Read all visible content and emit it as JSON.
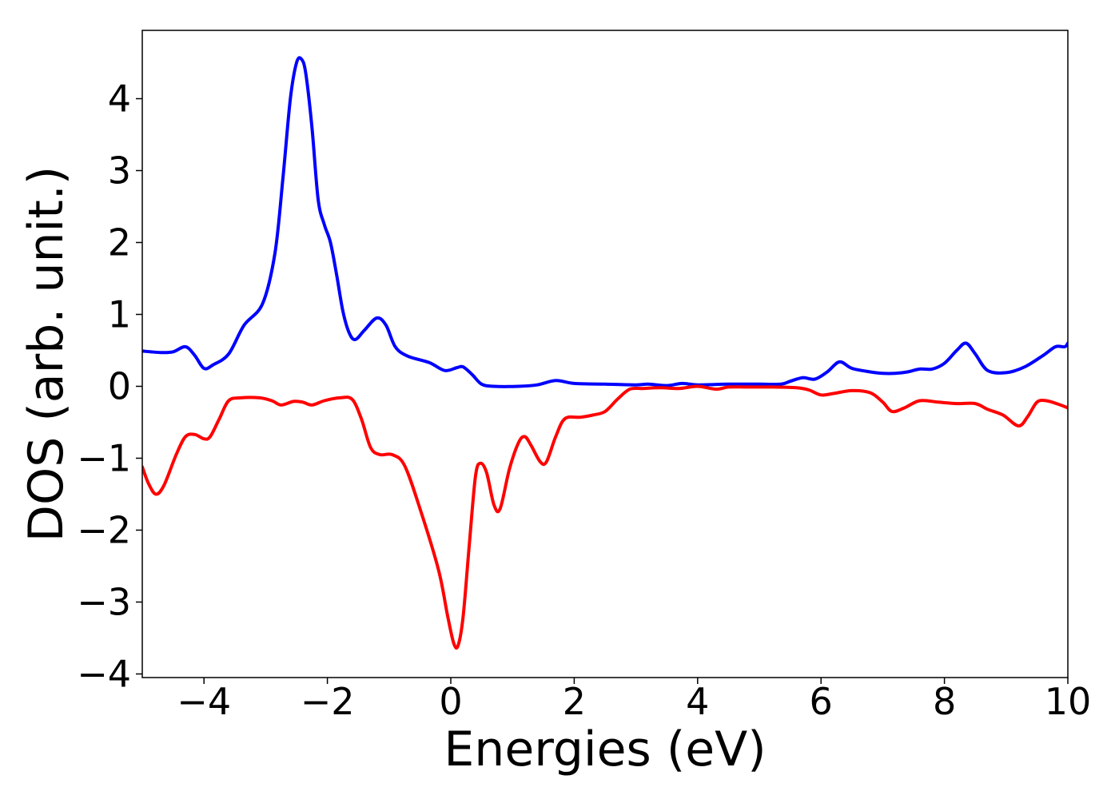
{
  "chart_data": {
    "type": "line",
    "title": "",
    "xlabel": "Energies (eV)",
    "ylabel": "DOS (arb. unit.)",
    "xlim": [
      -5,
      10
    ],
    "ylim": [
      -4.05,
      4.95
    ],
    "grid": false,
    "legend": "none",
    "x_ticks": [
      -4,
      -2,
      0,
      2,
      4,
      6,
      8,
      10
    ],
    "x_tick_labels": [
      "−4",
      "−2",
      "0",
      "2",
      "4",
      "6",
      "8",
      "10"
    ],
    "y_ticks": [
      -4,
      -3,
      -2,
      -1,
      0,
      1,
      2,
      3,
      4
    ],
    "y_tick_labels": [
      "−4",
      "−3",
      "−2",
      "−1",
      "0",
      "1",
      "2",
      "3",
      "4"
    ],
    "series": [
      {
        "color": "#0000ff",
        "points": [
          [
            -5.0,
            0.49
          ],
          [
            -4.7,
            0.47
          ],
          [
            -4.5,
            0.48
          ],
          [
            -4.3,
            0.55
          ],
          [
            -4.15,
            0.43
          ],
          [
            -4.0,
            0.25
          ],
          [
            -3.85,
            0.3
          ],
          [
            -3.6,
            0.45
          ],
          [
            -3.35,
            0.85
          ],
          [
            -3.05,
            1.15
          ],
          [
            -2.85,
            1.85
          ],
          [
            -2.72,
            2.9
          ],
          [
            -2.6,
            4.0
          ],
          [
            -2.5,
            4.5
          ],
          [
            -2.42,
            4.55
          ],
          [
            -2.35,
            4.35
          ],
          [
            -2.25,
            3.6
          ],
          [
            -2.15,
            2.6
          ],
          [
            -2.05,
            2.25
          ],
          [
            -1.95,
            2.0
          ],
          [
            -1.85,
            1.55
          ],
          [
            -1.75,
            1.05
          ],
          [
            -1.65,
            0.75
          ],
          [
            -1.55,
            0.65
          ],
          [
            -1.4,
            0.78
          ],
          [
            -1.2,
            0.95
          ],
          [
            -1.05,
            0.85
          ],
          [
            -0.9,
            0.55
          ],
          [
            -0.7,
            0.42
          ],
          [
            -0.35,
            0.33
          ],
          [
            -0.1,
            0.22
          ],
          [
            0.1,
            0.26
          ],
          [
            0.2,
            0.27
          ],
          [
            0.35,
            0.16
          ],
          [
            0.5,
            0.03
          ],
          [
            0.7,
            0.0
          ],
          [
            1.1,
            0.0
          ],
          [
            1.4,
            0.02
          ],
          [
            1.7,
            0.08
          ],
          [
            2.0,
            0.04
          ],
          [
            2.5,
            0.03
          ],
          [
            3.0,
            0.02
          ],
          [
            3.2,
            0.03
          ],
          [
            3.5,
            0.01
          ],
          [
            3.75,
            0.04
          ],
          [
            4.0,
            0.02
          ],
          [
            4.5,
            0.03
          ],
          [
            5.0,
            0.03
          ],
          [
            5.35,
            0.03
          ],
          [
            5.5,
            0.07
          ],
          [
            5.7,
            0.12
          ],
          [
            5.9,
            0.1
          ],
          [
            6.1,
            0.2
          ],
          [
            6.3,
            0.34
          ],
          [
            6.5,
            0.25
          ],
          [
            6.8,
            0.2
          ],
          [
            7.0,
            0.18
          ],
          [
            7.2,
            0.18
          ],
          [
            7.4,
            0.2
          ],
          [
            7.6,
            0.24
          ],
          [
            7.8,
            0.24
          ],
          [
            8.0,
            0.32
          ],
          [
            8.2,
            0.5
          ],
          [
            8.35,
            0.6
          ],
          [
            8.5,
            0.45
          ],
          [
            8.7,
            0.22
          ],
          [
            9.0,
            0.19
          ],
          [
            9.3,
            0.27
          ],
          [
            9.6,
            0.43
          ],
          [
            9.8,
            0.55
          ],
          [
            9.95,
            0.55
          ],
          [
            10.0,
            0.6
          ]
        ]
      },
      {
        "color": "#ff0000",
        "points": [
          [
            -5.0,
            -1.12
          ],
          [
            -4.9,
            -1.35
          ],
          [
            -4.78,
            -1.5
          ],
          [
            -4.65,
            -1.38
          ],
          [
            -4.45,
            -0.95
          ],
          [
            -4.3,
            -0.7
          ],
          [
            -4.15,
            -0.67
          ],
          [
            -4.0,
            -0.73
          ],
          [
            -3.9,
            -0.7
          ],
          [
            -3.75,
            -0.45
          ],
          [
            -3.6,
            -0.2
          ],
          [
            -3.4,
            -0.16
          ],
          [
            -3.1,
            -0.16
          ],
          [
            -2.9,
            -0.2
          ],
          [
            -2.75,
            -0.26
          ],
          [
            -2.55,
            -0.21
          ],
          [
            -2.4,
            -0.22
          ],
          [
            -2.25,
            -0.26
          ],
          [
            -2.05,
            -0.2
          ],
          [
            -1.8,
            -0.16
          ],
          [
            -1.6,
            -0.18
          ],
          [
            -1.45,
            -0.45
          ],
          [
            -1.3,
            -0.85
          ],
          [
            -1.15,
            -0.95
          ],
          [
            -0.95,
            -0.95
          ],
          [
            -0.75,
            -1.1
          ],
          [
            -0.5,
            -1.7
          ],
          [
            -0.2,
            -2.55
          ],
          [
            -0.05,
            -3.2
          ],
          [
            0.05,
            -3.58
          ],
          [
            0.12,
            -3.6
          ],
          [
            0.2,
            -3.2
          ],
          [
            0.3,
            -2.2
          ],
          [
            0.4,
            -1.25
          ],
          [
            0.48,
            -1.07
          ],
          [
            0.58,
            -1.2
          ],
          [
            0.7,
            -1.65
          ],
          [
            0.8,
            -1.7
          ],
          [
            0.95,
            -1.15
          ],
          [
            1.1,
            -0.78
          ],
          [
            1.2,
            -0.7
          ],
          [
            1.3,
            -0.82
          ],
          [
            1.45,
            -1.05
          ],
          [
            1.55,
            -1.05
          ],
          [
            1.7,
            -0.7
          ],
          [
            1.85,
            -0.45
          ],
          [
            2.1,
            -0.43
          ],
          [
            2.3,
            -0.4
          ],
          [
            2.5,
            -0.35
          ],
          [
            2.7,
            -0.18
          ],
          [
            2.9,
            -0.04
          ],
          [
            3.1,
            -0.03
          ],
          [
            3.4,
            -0.02
          ],
          [
            3.7,
            -0.03
          ],
          [
            4.0,
            0.0
          ],
          [
            4.3,
            -0.04
          ],
          [
            4.5,
            -0.01
          ],
          [
            4.8,
            -0.01
          ],
          [
            5.2,
            -0.01
          ],
          [
            5.6,
            -0.02
          ],
          [
            5.8,
            -0.05
          ],
          [
            6.0,
            -0.12
          ],
          [
            6.2,
            -0.1
          ],
          [
            6.5,
            -0.06
          ],
          [
            6.8,
            -0.09
          ],
          [
            7.0,
            -0.22
          ],
          [
            7.15,
            -0.35
          ],
          [
            7.35,
            -0.3
          ],
          [
            7.6,
            -0.2
          ],
          [
            7.9,
            -0.22
          ],
          [
            8.2,
            -0.24
          ],
          [
            8.5,
            -0.24
          ],
          [
            8.7,
            -0.32
          ],
          [
            8.95,
            -0.4
          ],
          [
            9.2,
            -0.55
          ],
          [
            9.35,
            -0.42
          ],
          [
            9.5,
            -0.22
          ],
          [
            9.65,
            -0.2
          ],
          [
            9.85,
            -0.25
          ],
          [
            10.0,
            -0.3
          ]
        ]
      }
    ]
  }
}
